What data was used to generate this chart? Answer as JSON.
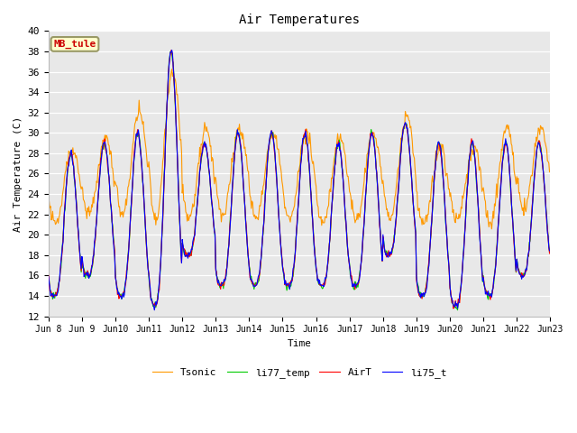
{
  "title": "Air Temperatures",
  "ylabel": "Air Temperature (C)",
  "xlabel": "Time",
  "ylim": [
    12,
    40
  ],
  "yticks": [
    12,
    14,
    16,
    18,
    20,
    22,
    24,
    26,
    28,
    30,
    32,
    34,
    36,
    38,
    40
  ],
  "label_text": "MB_tule",
  "label_color": "#cc0000",
  "label_bg": "#ffffcc",
  "label_border": "#999966",
  "bg_color": "#e8e8e8",
  "series_colors": [
    "#ff0000",
    "#0000ff",
    "#00cc00",
    "#ff9900"
  ],
  "series_names": [
    "AirT",
    "li75_t",
    "li77_temp",
    "Tsonic"
  ],
  "line_width": 0.8,
  "start_day": 8,
  "end_day": 23,
  "pts_per_day": 48,
  "day_peaks": [
    28,
    29,
    30,
    38,
    29,
    30,
    30,
    30,
    29,
    30,
    31,
    29,
    29,
    29,
    29
  ],
  "day_troughs": [
    14,
    16,
    14,
    13,
    18,
    15,
    15,
    15,
    15,
    15,
    18,
    14,
    13,
    14,
    16
  ],
  "tsonic_peaks": [
    28.5,
    29.5,
    32.0,
    36.0,
    30.5,
    30.5,
    30.0,
    30.0,
    29.5,
    30.0,
    31.5,
    28.5,
    28.5,
    30.5,
    30.5
  ],
  "tsonic_troughs": [
    21.0,
    22.0,
    22.0,
    21.5,
    21.5,
    22.0,
    21.5,
    21.5,
    21.0,
    21.5,
    21.5,
    21.0,
    21.5,
    21.0,
    22.5
  ]
}
